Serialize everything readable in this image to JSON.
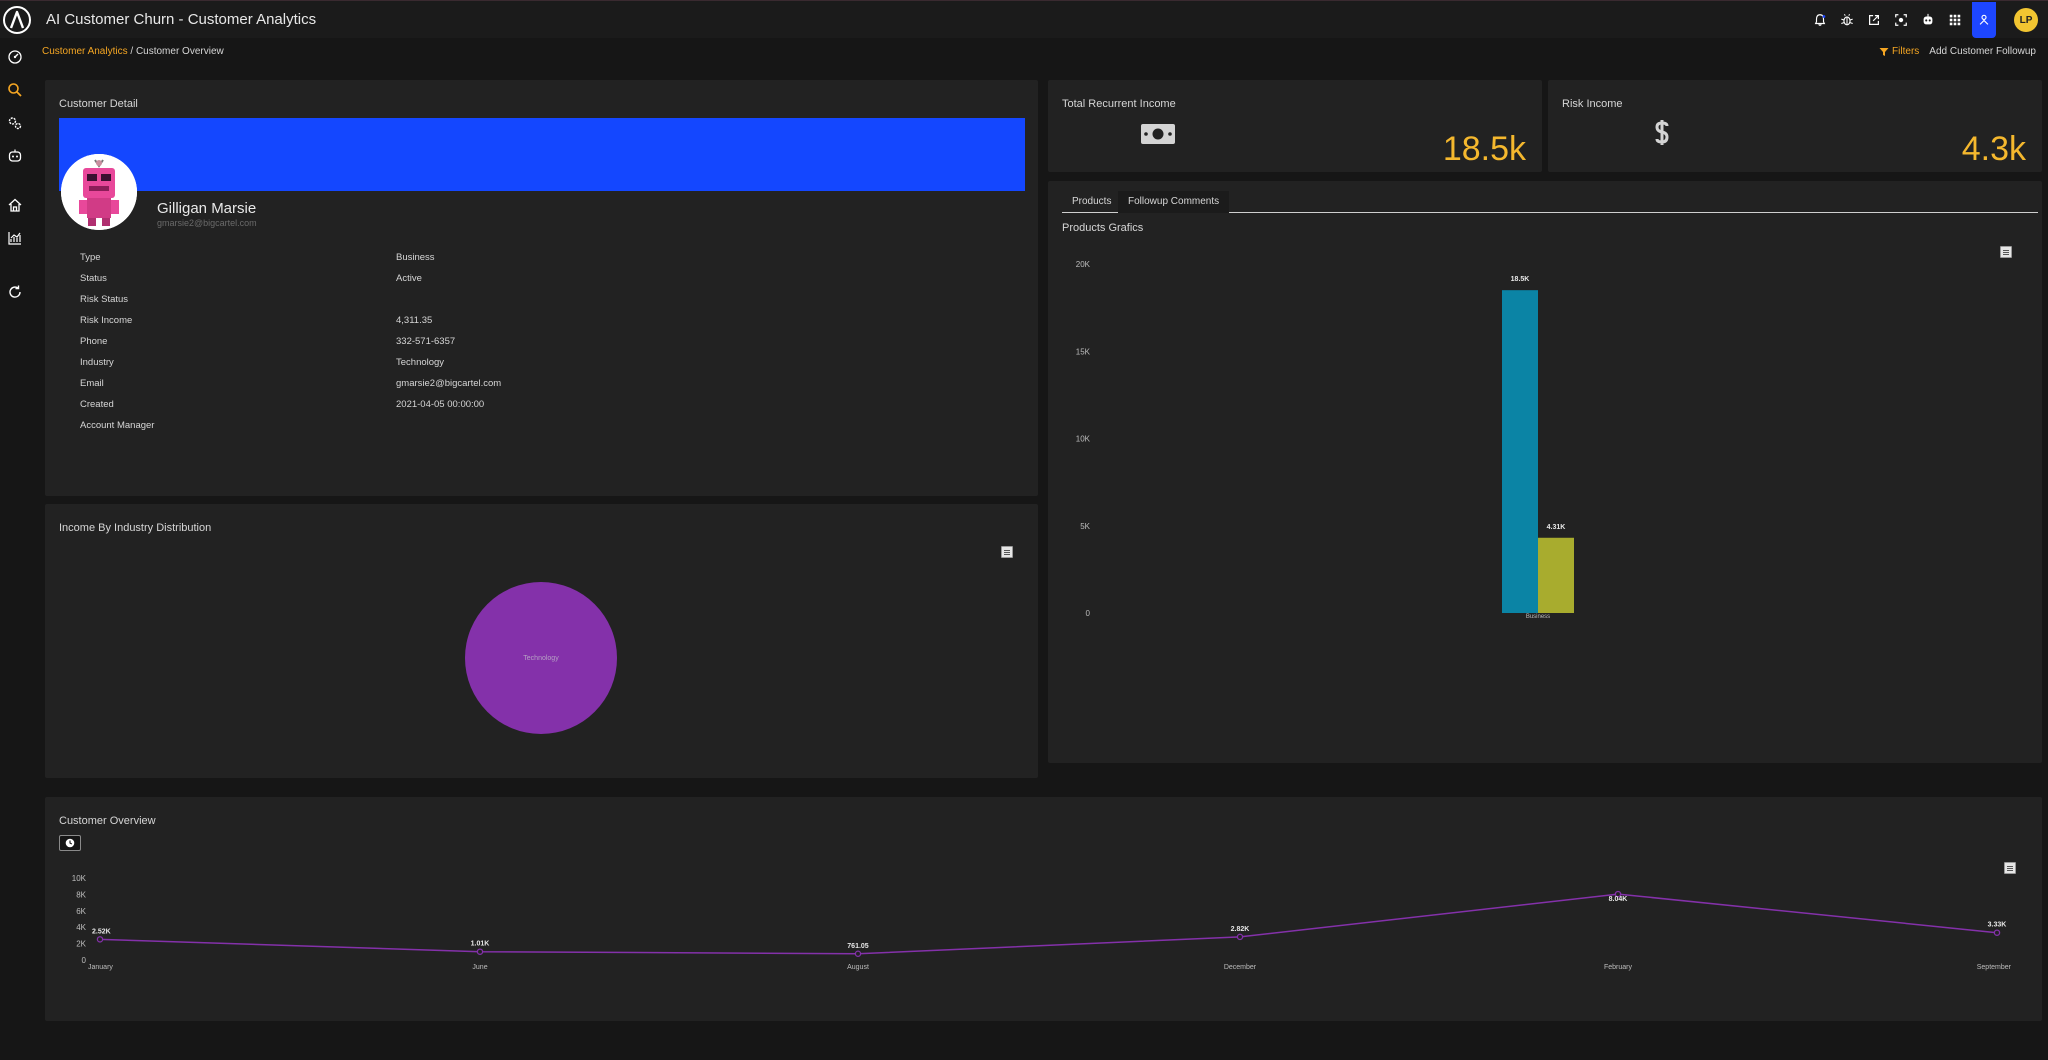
{
  "app": {
    "title": "AI Customer Churn - Customer Analytics",
    "user_initials": "LP",
    "accent": "#f5a623",
    "active_blue": "#1d46ff"
  },
  "breadcrumb": {
    "parent": "Customer Analytics",
    "separator": " / ",
    "current": "Customer Overview"
  },
  "actions": {
    "filters_label": "Filters",
    "add_followup_label": "Add Customer Followup"
  },
  "customer_detail": {
    "title": "Customer Detail",
    "name": "Gilligan Marsie",
    "email": "gmarsie2@bigcartel.com",
    "fields": [
      {
        "label": "Type",
        "value": "Business"
      },
      {
        "label": "Status",
        "value": "Active"
      },
      {
        "label": "Risk Status",
        "value": ""
      },
      {
        "label": "Risk Income",
        "value": "4,311.35"
      },
      {
        "label": "Phone",
        "value": "332-571-6357"
      },
      {
        "label": "Industry",
        "value": "Technology"
      },
      {
        "label": "Email",
        "value": "gmarsie2@bigcartel.com"
      },
      {
        "label": "Created",
        "value": "2021-04-05 00:00:00"
      },
      {
        "label": "Account Manager",
        "value": ""
      }
    ]
  },
  "kpis": [
    {
      "title": "Total Recurrent Income",
      "value": "18.5k",
      "icon": "money-icon"
    },
    {
      "title": "Risk Income",
      "value": "4.3k",
      "icon": "dollar-icon"
    }
  ],
  "products": {
    "tabs": [
      {
        "label": "Products",
        "active": true
      },
      {
        "label": "Followup Comments",
        "active": false
      }
    ],
    "chart_title": "Products Grafics"
  },
  "industry": {
    "title": "Income By Industry Distribution"
  },
  "overview": {
    "title": "Customer Overview"
  },
  "chart_data": [
    {
      "id": "products-grafics",
      "type": "bar",
      "categories": [
        "Business"
      ],
      "series": [
        {
          "values": [
            18500
          ],
          "color": "#0b84a5"
        },
        {
          "values": [
            4311.35
          ],
          "color": "#a8ac2e"
        }
      ],
      "data_labels": [
        "18.5K",
        "4.31K"
      ],
      "y_ticks": [
        "20K",
        "15K",
        "10K",
        "5K",
        "0"
      ],
      "ylim": [
        0,
        20000
      ],
      "grid": false,
      "legend": "none"
    },
    {
      "id": "income-by-industry",
      "type": "pie",
      "labels": [
        "Technology"
      ],
      "values": [
        100
      ],
      "colors": [
        "#8431aa"
      ],
      "legend": "none"
    },
    {
      "id": "customer-overview",
      "type": "line",
      "x": [
        "January",
        "June",
        "August",
        "December",
        "February",
        "September"
      ],
      "values": [
        2520,
        1010,
        761.05,
        2820,
        8040,
        3330
      ],
      "data_labels": [
        "2.52K",
        "1.01K",
        "761.05",
        "2.82K",
        "8.04K",
        "3.33K"
      ],
      "y_ticks": [
        "10K",
        "8K",
        "6K",
        "4K",
        "2K",
        "0"
      ],
      "ylim": [
        0,
        10000
      ],
      "color": "#8431aa",
      "grid": false,
      "legend": "none"
    }
  ]
}
